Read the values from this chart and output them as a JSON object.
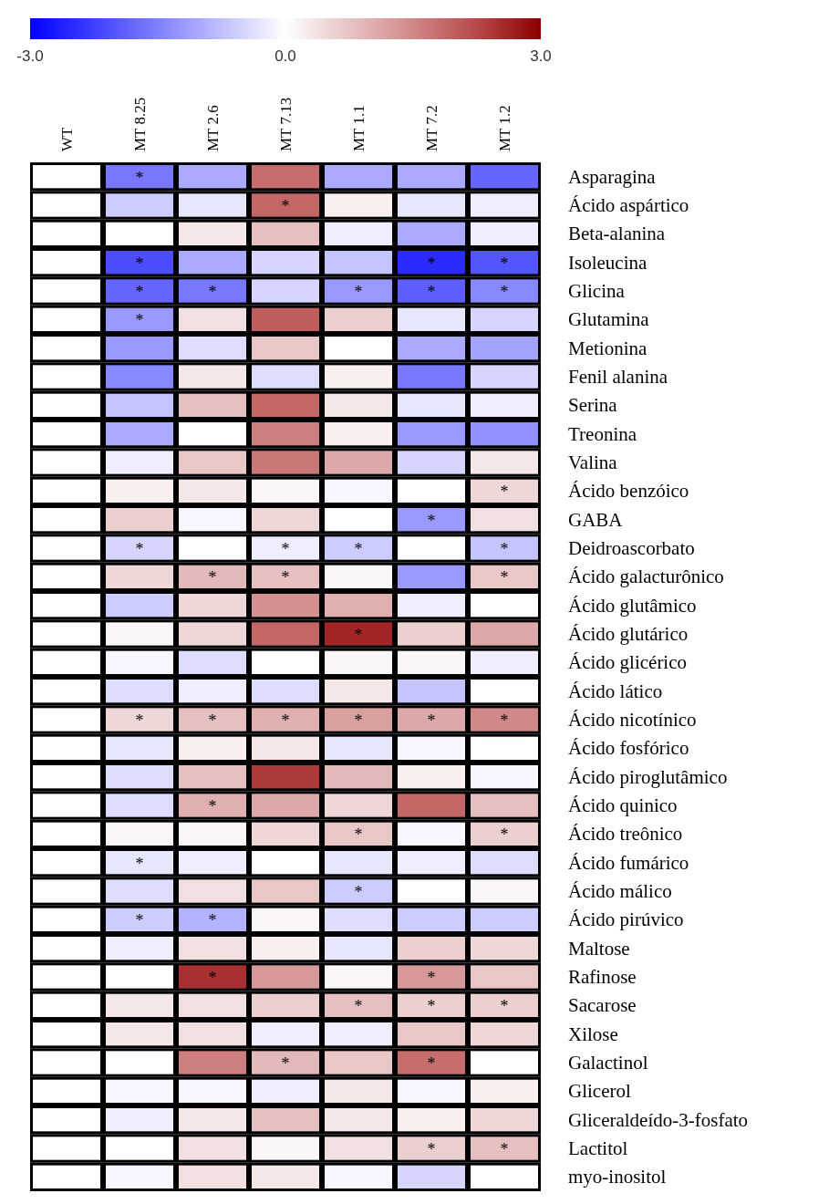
{
  "chart_data": {
    "type": "heatmap",
    "categories": [
      "WT",
      "MT 8.25",
      "MT 2.6",
      "MT 7.13",
      "MT 1.1",
      "MT 7.2",
      "MT 1.2"
    ],
    "y_categories": [
      "Asparagina",
      "Ácido aspártico",
      "Beta-alanina",
      "Isoleucina",
      "Glicina",
      "Glutamina",
      "Metionina",
      "Fenil alanina",
      "Serina",
      "Treonina",
      "Valina",
      "Ácido benzóico",
      "GABA",
      "Deidroascorbato",
      "Ácido galacturônico",
      "Ácido glutâmico",
      "Ácido glutárico",
      "Ácido glicérico",
      "Ácido lático",
      "Ácido nicotínico",
      "Ácido fosfórico",
      "Ácido piroglutâmico",
      "Ácido quinico",
      "Ácido treônico",
      "Ácido fumárico",
      "Ácido málico",
      "Ácido pirúvico",
      "Maltose",
      "Rafinose",
      "Sacarose",
      "Xilose",
      "Galactinol",
      "Glicerol",
      "Gliceraldeído-3-fosfato",
      "Lactitol",
      "myo-inositol"
    ],
    "cells": [
      [
        0,
        -1.6,
        -1.0,
        1.8,
        -1.0,
        -1.0,
        -1.8
      ],
      [
        0,
        -0.6,
        -0.3,
        1.9,
        0.2,
        -0.3,
        -0.2
      ],
      [
        0,
        0,
        0.3,
        0.8,
        -0.2,
        -1.0,
        -0.2
      ],
      [
        0,
        -2.1,
        -1.0,
        -0.5,
        -0.7,
        -2.5,
        -2.0
      ],
      [
        0,
        -1.8,
        -1.6,
        -0.5,
        -1.2,
        -1.9,
        -1.4
      ],
      [
        0,
        -1.2,
        0.4,
        2.0,
        0.6,
        -0.3,
        -0.5
      ],
      [
        0,
        -1.2,
        -0.4,
        0.7,
        0,
        -1.0,
        -1.1
      ],
      [
        0,
        -1.4,
        0.3,
        -0.4,
        0.2,
        -1.6,
        -0.5
      ],
      [
        0,
        -0.7,
        0.8,
        1.9,
        0.3,
        -0.3,
        -0.2
      ],
      [
        0,
        -1.0,
        0,
        1.6,
        0.2,
        -1.2,
        -1.3
      ],
      [
        0,
        -0.2,
        0.7,
        1.7,
        1.1,
        -0.5,
        0.3
      ],
      [
        0,
        0.2,
        0.3,
        0.1,
        -0.1,
        0,
        0.5
      ],
      [
        0,
        0.6,
        -0.1,
        0.5,
        0,
        -1.2,
        0.4
      ],
      [
        0,
        -0.5,
        0,
        -0.2,
        -0.6,
        0,
        -0.7
      ],
      [
        0,
        0.5,
        0.9,
        0.8,
        0.1,
        -1.2,
        0.7
      ],
      [
        0,
        -0.6,
        0.5,
        1.4,
        1.0,
        -0.2,
        0
      ],
      [
        0,
        0.1,
        0.5,
        1.9,
        2.6,
        0.6,
        1.1
      ],
      [
        0,
        -0.1,
        -0.4,
        0,
        0.1,
        0.1,
        -0.2
      ],
      [
        0,
        -0.4,
        -0.2,
        -0.4,
        0.3,
        -0.7,
        0
      ],
      [
        0,
        0.5,
        0.8,
        1.0,
        1.2,
        1.1,
        1.5
      ],
      [
        0,
        -0.3,
        0.2,
        0.3,
        -0.3,
        -0.1,
        0
      ],
      [
        0,
        -0.4,
        0.8,
        2.4,
        0.9,
        0.2,
        -0.1
      ],
      [
        0,
        -0.4,
        1.0,
        1.1,
        0.5,
        1.9,
        0.8
      ],
      [
        0,
        0.1,
        0.1,
        0.5,
        0.7,
        -0.1,
        0.6
      ],
      [
        0,
        -0.3,
        -0.2,
        0,
        -0.3,
        -0.2,
        -0.4
      ],
      [
        0,
        -0.4,
        0.4,
        0.7,
        -0.6,
        0,
        0.1
      ],
      [
        0,
        -0.6,
        -0.9,
        0.1,
        -0.4,
        -0.6,
        -0.6
      ],
      [
        0,
        -0.2,
        0.4,
        0.2,
        -0.3,
        0.6,
        0.5
      ],
      [
        0,
        0,
        2.5,
        1.3,
        0.1,
        1.3,
        0.7
      ],
      [
        0,
        0.3,
        0.4,
        0.6,
        0.8,
        0.6,
        0.6
      ],
      [
        0,
        0.3,
        0.4,
        -0.2,
        -0.2,
        0.7,
        0.5
      ],
      [
        0,
        0,
        1.6,
        0.9,
        0.7,
        1.8,
        0
      ],
      [
        0,
        -0.1,
        -0.1,
        -0.2,
        0.3,
        -0.1,
        0.2
      ],
      [
        0,
        -0.2,
        0.3,
        0.8,
        0.3,
        0.2,
        0.5
      ],
      [
        0,
        0,
        0.4,
        0.1,
        0.4,
        0.6,
        0.8
      ],
      [
        0,
        -0.1,
        0.4,
        0.3,
        -0.1,
        -0.5,
        0
      ]
    ],
    "cell_labels": [
      [
        null,
        "*",
        null,
        null,
        null,
        null,
        null
      ],
      [
        null,
        null,
        null,
        "*",
        null,
        null,
        null
      ],
      [
        null,
        null,
        null,
        null,
        null,
        null,
        null
      ],
      [
        null,
        "*",
        null,
        null,
        null,
        "*",
        "*"
      ],
      [
        null,
        "*",
        "*",
        null,
        "*",
        "*",
        "*"
      ],
      [
        null,
        "*",
        null,
        null,
        null,
        null,
        null
      ],
      [
        null,
        null,
        null,
        null,
        null,
        null,
        null
      ],
      [
        null,
        null,
        null,
        null,
        null,
        null,
        null
      ],
      [
        null,
        null,
        null,
        null,
        null,
        null,
        null
      ],
      [
        null,
        null,
        null,
        null,
        null,
        null,
        null
      ],
      [
        null,
        null,
        null,
        null,
        null,
        null,
        null
      ],
      [
        null,
        null,
        null,
        null,
        null,
        null,
        "*"
      ],
      [
        null,
        null,
        null,
        null,
        null,
        "*",
        null
      ],
      [
        null,
        "*",
        null,
        "*",
        "*",
        null,
        "*"
      ],
      [
        null,
        null,
        "*",
        "*",
        null,
        null,
        "*"
      ],
      [
        null,
        null,
        null,
        null,
        null,
        null,
        null
      ],
      [
        null,
        null,
        null,
        null,
        "*",
        null,
        null
      ],
      [
        null,
        null,
        null,
        null,
        null,
        null,
        null
      ],
      [
        null,
        null,
        null,
        null,
        null,
        null,
        null
      ],
      [
        null,
        "*",
        "*",
        "*",
        "*",
        "*",
        "*"
      ],
      [
        null,
        null,
        null,
        null,
        null,
        null,
        null
      ],
      [
        null,
        null,
        null,
        null,
        null,
        null,
        null
      ],
      [
        null,
        null,
        "*",
        null,
        null,
        null,
        null
      ],
      [
        null,
        null,
        null,
        null,
        "*",
        null,
        "*"
      ],
      [
        null,
        "*",
        null,
        null,
        null,
        null,
        null
      ],
      [
        null,
        null,
        null,
        null,
        "*",
        null,
        null
      ],
      [
        null,
        "*",
        "*",
        null,
        null,
        null,
        null
      ],
      [
        null,
        null,
        null,
        null,
        null,
        null,
        null
      ],
      [
        null,
        null,
        "*",
        null,
        null,
        "*",
        null
      ],
      [
        null,
        null,
        null,
        null,
        "*",
        "*",
        "*"
      ],
      [
        null,
        null,
        null,
        null,
        null,
        null,
        null
      ],
      [
        null,
        null,
        null,
        "*",
        null,
        "*",
        null
      ],
      [
        null,
        null,
        null,
        null,
        null,
        null,
        null
      ],
      [
        null,
        null,
        null,
        null,
        null,
        null,
        null
      ],
      [
        null,
        null,
        null,
        null,
        null,
        "*",
        "*"
      ],
      [
        null,
        null,
        null,
        null,
        null,
        null,
        null
      ]
    ],
    "clim": [
      -3,
      3
    ],
    "cticks": [
      {
        "value": -3,
        "label": "-3.0"
      },
      {
        "value": 0,
        "label": "0.0"
      },
      {
        "value": 3,
        "label": "3.0"
      }
    ]
  }
}
